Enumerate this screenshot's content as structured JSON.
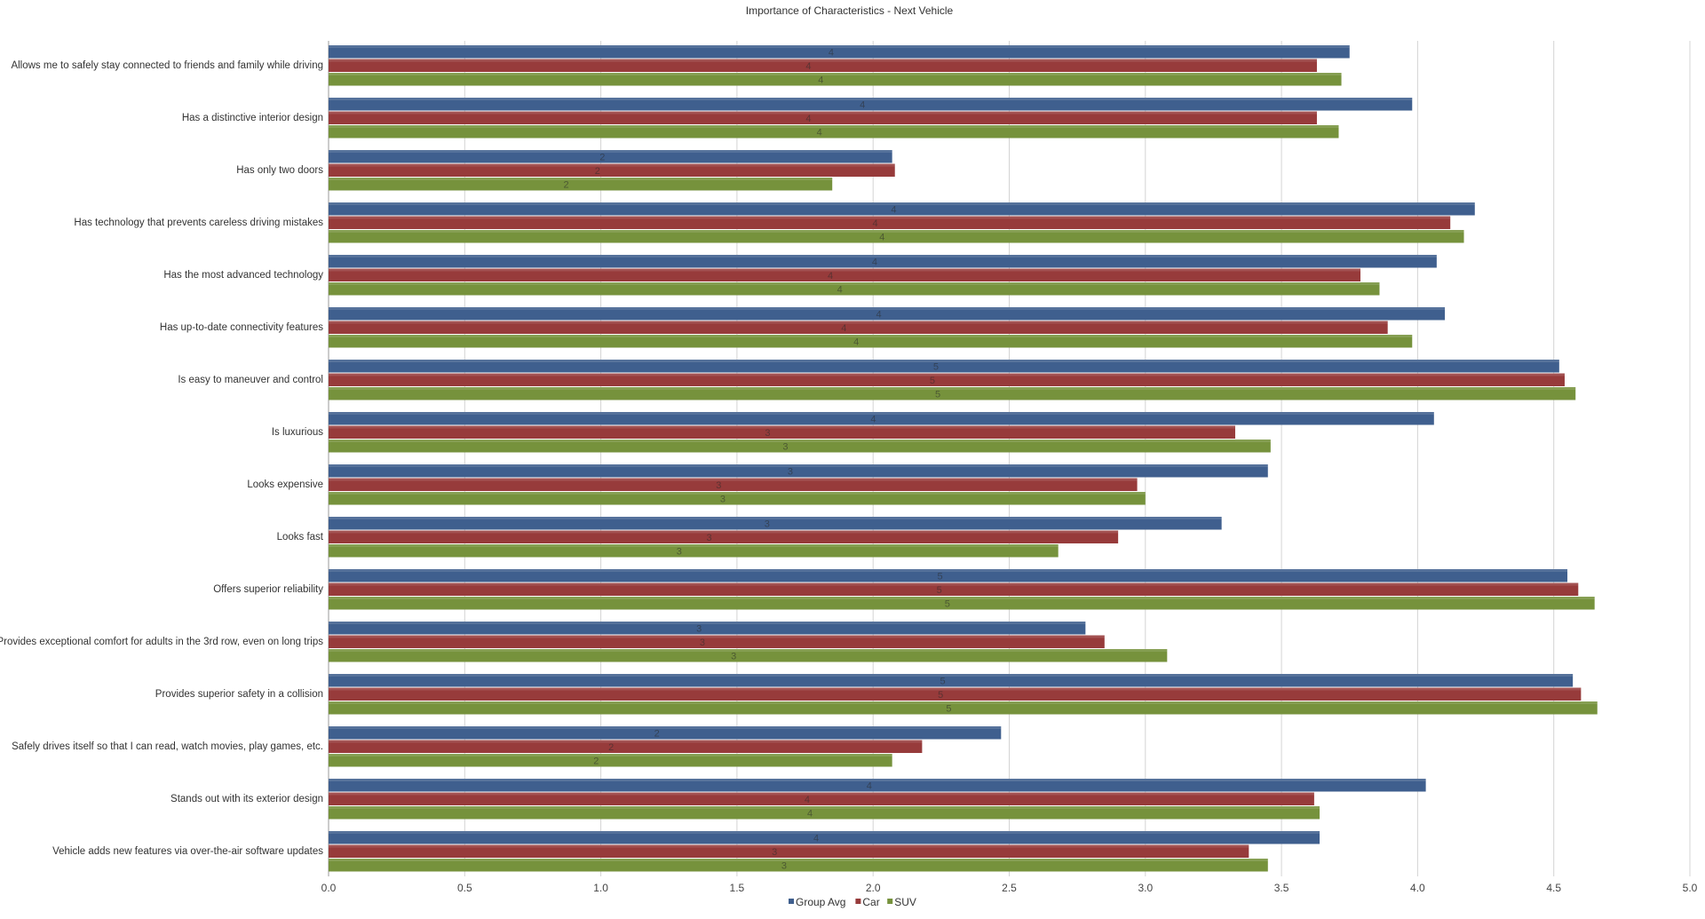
{
  "chart_data": {
    "type": "bar",
    "orientation": "horizontal",
    "title": "Importance of Characteristics - Next Vehicle",
    "categories": [
      "Allows me to safely stay connected to friends and family while driving",
      "Has a distinctive interior design",
      "Has only two doors",
      "Has technology that prevents careless driving mistakes",
      "Has the most advanced technology",
      "Has up-to-date connectivity features",
      "Is easy to maneuver and control",
      "Is luxurious",
      "Looks expensive",
      "Looks fast",
      "Offers superior reliability",
      "Provides exceptional comfort for adults in the 3rd row, even on long trips",
      "Provides superior safety in a collision",
      "Safely drives itself so that I can read, watch movies, play games, etc.",
      "Stands out with its exterior design",
      "Vehicle adds new features via over-the-air software updates"
    ],
    "series": [
      {
        "name": "Group Avg",
        "color": "#3f5f8e",
        "values": [
          3.75,
          3.98,
          2.07,
          4.21,
          4.07,
          4.1,
          4.52,
          4.06,
          3.45,
          3.28,
          4.55,
          2.78,
          4.57,
          2.47,
          4.03,
          3.64
        ],
        "labels": [
          "4",
          "4",
          "2",
          "4",
          "4",
          "4",
          "5",
          "4",
          "3",
          "3",
          "5",
          "3",
          "5",
          "2",
          "4",
          "4"
        ]
      },
      {
        "name": "Car",
        "color": "#973b3b",
        "values": [
          3.63,
          3.63,
          2.08,
          4.12,
          3.79,
          3.89,
          4.54,
          3.33,
          2.97,
          2.9,
          4.59,
          2.85,
          4.6,
          2.18,
          3.62,
          3.38
        ],
        "labels": [
          "4",
          "4",
          "2",
          "4",
          "4",
          "4",
          "5",
          "3",
          "3",
          "3",
          "5",
          "3",
          "5",
          "2",
          "4",
          "3"
        ]
      },
      {
        "name": "SUV",
        "color": "#76923c",
        "values": [
          3.72,
          3.71,
          1.85,
          4.17,
          3.86,
          3.98,
          4.58,
          3.46,
          3.0,
          2.68,
          4.65,
          3.08,
          4.66,
          2.07,
          3.64,
          3.45
        ],
        "labels": [
          "4",
          "4",
          "2",
          "4",
          "4",
          "4",
          "5",
          "3",
          "3",
          "3",
          "5",
          "3",
          "5",
          "2",
          "4",
          "3"
        ]
      }
    ],
    "xlim": [
      0,
      5
    ],
    "xticks": [
      "0.0",
      "0.5",
      "1.0",
      "1.5",
      "2.0",
      "2.5",
      "3.0",
      "3.5",
      "4.0",
      "4.5",
      "5.0"
    ],
    "grid": true,
    "legend_position": "bottom"
  }
}
